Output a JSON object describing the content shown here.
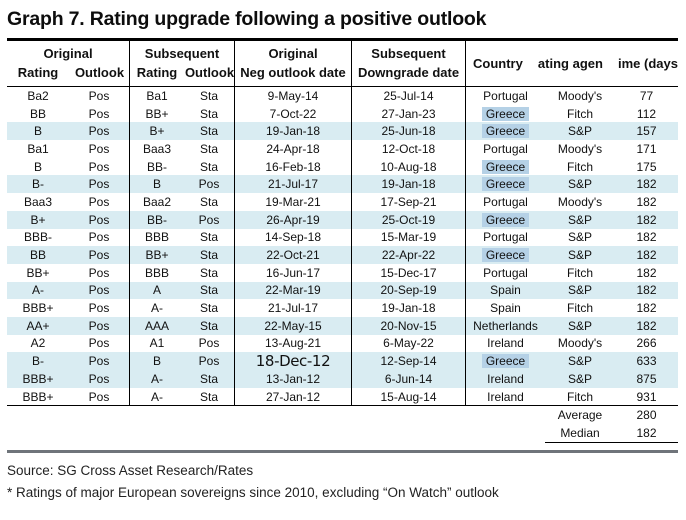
{
  "title": "Graph 7. Rating upgrade following a positive outlook",
  "header": {
    "group_original": "Original",
    "group_subsequent": "Subsequent",
    "sub_rating": "Rating",
    "sub_outlook": "Outlook",
    "neg_top": "Original",
    "neg_sub": "Neg outlook date",
    "down_top": "Subsequent",
    "down_sub": "Downgrade date",
    "country_label": "Country",
    "agency_label_clipped": "ating agen",
    "time_label_clipped": "ime (days"
  },
  "chart_data": {
    "type": "table",
    "title": "Graph 7. Rating upgrade following a positive outlook",
    "columns": [
      "Original Rating",
      "Original Outlook",
      "Subsequent Rating",
      "Subsequent Outlook",
      "Original Neg outlook date",
      "Subsequent Downgrade date",
      "Country",
      "Rating agency",
      "Time (days)"
    ],
    "rows": [
      {
        "cells": [
          "Ba2",
          "Pos",
          "Ba1",
          "Sta",
          "9-May-14",
          "25-Jul-14",
          "Portugal",
          "Moody's",
          "77"
        ],
        "highlight": false,
        "greece": false,
        "big_date": false
      },
      {
        "cells": [
          "BB",
          "Pos",
          "BB+",
          "Sta",
          "7-Oct-22",
          "27-Jan-23",
          "Greece",
          "Fitch",
          "112"
        ],
        "highlight": false,
        "greece": true,
        "big_date": false
      },
      {
        "cells": [
          "B",
          "Pos",
          "B+",
          "Sta",
          "19-Jan-18",
          "25-Jun-18",
          "Greece",
          "S&P",
          "157"
        ],
        "highlight": true,
        "greece": true,
        "big_date": false
      },
      {
        "cells": [
          "Ba1",
          "Pos",
          "Baa3",
          "Sta",
          "24-Apr-18",
          "12-Oct-18",
          "Portugal",
          "Moody's",
          "171"
        ],
        "highlight": false,
        "greece": false,
        "big_date": false
      },
      {
        "cells": [
          "B",
          "Pos",
          "BB-",
          "Sta",
          "16-Feb-18",
          "10-Aug-18",
          "Greece",
          "Fitch",
          "175"
        ],
        "highlight": false,
        "greece": true,
        "big_date": false
      },
      {
        "cells": [
          "B-",
          "Pos",
          "B",
          "Pos",
          "21-Jul-17",
          "19-Jan-18",
          "Greece",
          "S&P",
          "182"
        ],
        "highlight": true,
        "greece": true,
        "big_date": false
      },
      {
        "cells": [
          "Baa3",
          "Pos",
          "Baa2",
          "Sta",
          "19-Mar-21",
          "17-Sep-21",
          "Portugal",
          "Moody's",
          "182"
        ],
        "highlight": false,
        "greece": false,
        "big_date": false
      },
      {
        "cells": [
          "B+",
          "Pos",
          "BB-",
          "Pos",
          "26-Apr-19",
          "25-Oct-19",
          "Greece",
          "S&P",
          "182"
        ],
        "highlight": true,
        "greece": true,
        "big_date": false
      },
      {
        "cells": [
          "BBB-",
          "Pos",
          "BBB",
          "Sta",
          "14-Sep-18",
          "15-Mar-19",
          "Portugal",
          "S&P",
          "182"
        ],
        "highlight": false,
        "greece": false,
        "big_date": false
      },
      {
        "cells": [
          "BB",
          "Pos",
          "BB+",
          "Sta",
          "22-Oct-21",
          "22-Apr-22",
          "Greece",
          "S&P",
          "182"
        ],
        "highlight": true,
        "greece": true,
        "big_date": false
      },
      {
        "cells": [
          "BB+",
          "Pos",
          "BBB",
          "Sta",
          "16-Jun-17",
          "15-Dec-17",
          "Portugal",
          "Fitch",
          "182"
        ],
        "highlight": false,
        "greece": false,
        "big_date": false
      },
      {
        "cells": [
          "A-",
          "Pos",
          "A",
          "Sta",
          "22-Mar-19",
          "20-Sep-19",
          "Spain",
          "S&P",
          "182"
        ],
        "highlight": true,
        "greece": false,
        "big_date": false
      },
      {
        "cells": [
          "BBB+",
          "Pos",
          "A-",
          "Sta",
          "21-Jul-17",
          "19-Jan-18",
          "Spain",
          "Fitch",
          "182"
        ],
        "highlight": false,
        "greece": false,
        "big_date": false
      },
      {
        "cells": [
          "AA+",
          "Pos",
          "AAA",
          "Sta",
          "22-May-15",
          "20-Nov-15",
          "Netherlands",
          "S&P",
          "182"
        ],
        "highlight": true,
        "greece": false,
        "big_date": false
      },
      {
        "cells": [
          "A2",
          "Pos",
          "A1",
          "Pos",
          "13-Aug-21",
          "6-May-22",
          "Ireland",
          "Moody's",
          "266"
        ],
        "highlight": false,
        "greece": false,
        "big_date": false
      },
      {
        "cells": [
          "B-",
          "Pos",
          "B",
          "Pos",
          "18-Dec-12",
          "12-Sep-14",
          "Greece",
          "S&P",
          "633"
        ],
        "highlight": true,
        "greece": true,
        "big_date": true
      },
      {
        "cells": [
          "BBB+",
          "Pos",
          "A-",
          "Sta",
          "13-Jan-12",
          "6-Jun-14",
          "Ireland",
          "S&P",
          "875"
        ],
        "highlight": true,
        "greece": false,
        "big_date": false
      },
      {
        "cells": [
          "BBB+",
          "Pos",
          "A-",
          "Sta",
          "27-Jan-12",
          "15-Aug-14",
          "Ireland",
          "Fitch",
          "931"
        ],
        "highlight": false,
        "greece": false,
        "big_date": false
      }
    ],
    "summary": [
      {
        "label": "Average",
        "value": "280"
      },
      {
        "label": "Median",
        "value": "182"
      }
    ],
    "legend_position": "none",
    "grid": false
  },
  "footer": {
    "source": "Source: SG Cross Asset Research/Rates",
    "note": "* Ratings of major European sovereigns since 2010, excluding “On Watch” outlook"
  },
  "colors": {
    "row_highlight": "#d9ecf2",
    "greece_highlight": "#b5d1e6",
    "divider": "#6f747a",
    "border": "#000000"
  }
}
